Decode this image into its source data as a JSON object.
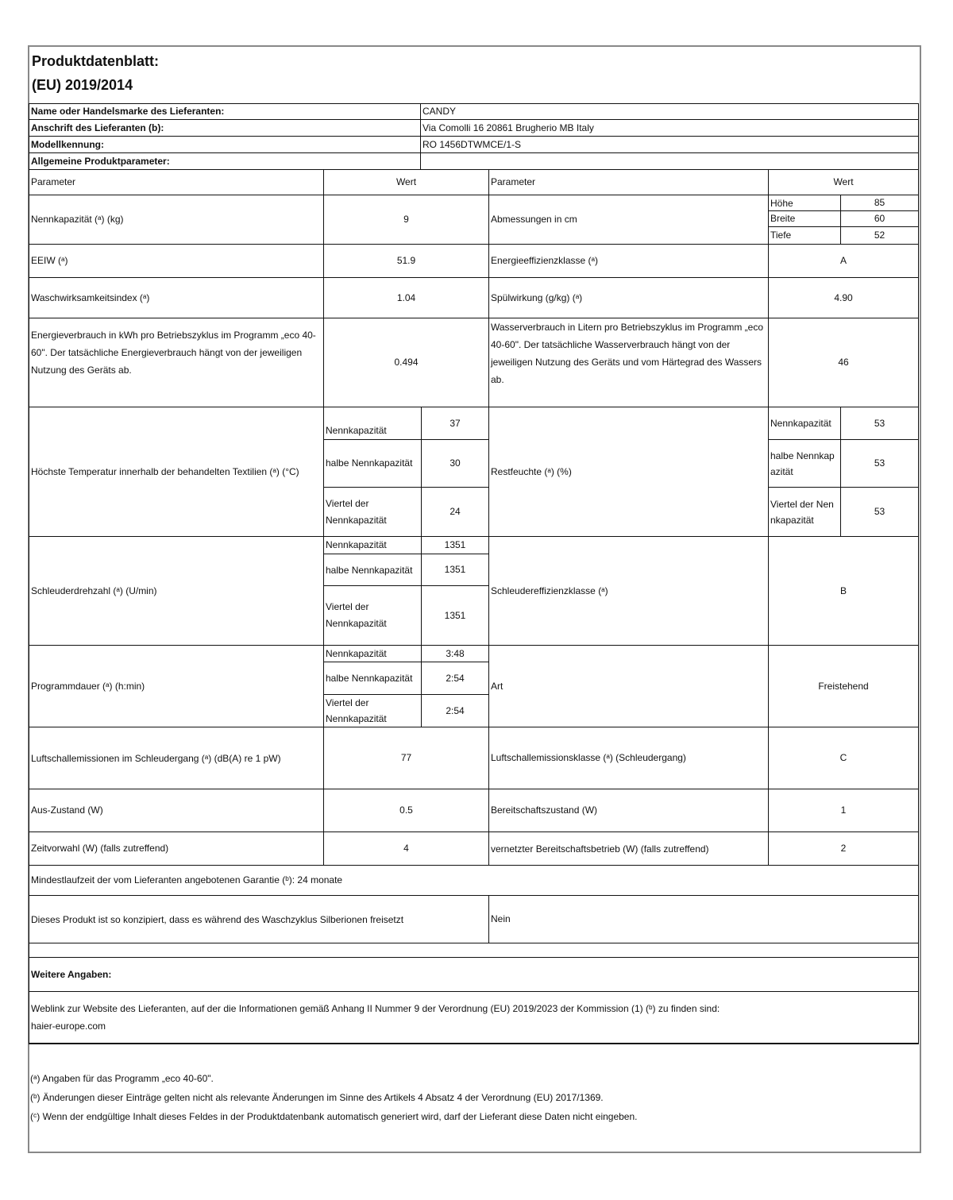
{
  "title": {
    "line1": "Produktdatenblatt:",
    "line2": "(EU) 2019/2014"
  },
  "supplier": {
    "name_label": "Name oder Handelsmarke des Lieferanten:",
    "name_value": "CANDY",
    "address_label": "Anschrift des Lieferanten (b):",
    "address_value": "Via Comolli 16 20861 Brugherio MB Italy",
    "model_label": "Modellkennung:",
    "model_value": "RO 1456DTWMCE/1-S",
    "general_label": "Allgemeine Produktparameter:"
  },
  "headers": {
    "param": "Parameter",
    "value": "Wert"
  },
  "rows": {
    "capacity": {
      "label": "Nennkapazität (ᵃ) (kg)",
      "value": "9"
    },
    "dimensions": {
      "label": "Abmessungen in cm",
      "height_label": "Höhe",
      "height": "85",
      "width_label": "Breite",
      "width": "60",
      "depth_label": "Tiefe",
      "depth": "52"
    },
    "eew": {
      "label": "EEIW (ᵃ)",
      "value": "51.9"
    },
    "energy_class": {
      "label": "Energieeffizienzklasse (ᵃ)",
      "value": "A"
    },
    "wash_index": {
      "label": "Waschwirksamkeitsindex (ᵃ)",
      "value": "1.04"
    },
    "rinse": {
      "label": "Spülwirkung (g/kg) (ᵃ)",
      "value": "4.90"
    },
    "energy": {
      "label": "Energieverbrauch in kWh pro Betriebszyklus im Programm „eco 40-60\". Der tatsächliche Energieverbrauch hängt von der jeweiligen Nutzung des Geräts ab.",
      "value": "0.494"
    },
    "water": {
      "label": "Wasserverbrauch in Litern pro Betriebszyklus im Programm „eco 40-60\". Der tatsächliche Wasserverbrauch hängt von der jeweiligen Nutzung des Geräts und vom Härtegrad des Wassers ab.",
      "value": "46"
    },
    "temp": {
      "label": "Höchste Temperatur innerhalb der behandelten Textilien (ᵃ) (°C)",
      "sub": [
        {
          "l": "Nennkapazität",
          "v": "37"
        },
        {
          "l": "halbe Nennkapazität",
          "v": "30"
        },
        {
          "l": "Viertel der Nennkapazität",
          "v": "24"
        }
      ]
    },
    "moisture": {
      "label": "Restfeuchte (ᵃ) (%)",
      "sub": [
        {
          "l": "Nennkapazität",
          "v": "53"
        },
        {
          "l": "halbe Nennkapazität",
          "v": "53"
        },
        {
          "l": "Viertel der Nennkapazität",
          "v": "53"
        }
      ]
    },
    "spin": {
      "label": "Schleuderdrehzahl (ᵃ) (U/min)",
      "sub": [
        {
          "l": "Nennkapazität",
          "v": "1351"
        },
        {
          "l": "halbe Nennkapazität",
          "v": "1351"
        },
        {
          "l": "Viertel der Nennkapazität",
          "v": "1351"
        }
      ]
    },
    "spin_class": {
      "label": "Schleudereffizienzklasse (ᵃ)",
      "value": "B"
    },
    "duration": {
      "label": "Programmdauer (ᵃ) (h:min)",
      "sub": [
        {
          "l": "Nennkapazität",
          "v": "3:48"
        },
        {
          "l": "halbe Nennkapazität",
          "v": "2:54"
        },
        {
          "l": "Viertel der Nennkapazität",
          "v": "2:54"
        }
      ]
    },
    "type": {
      "label": "Art",
      "value": "Freistehend"
    },
    "noise": {
      "label": "Luftschallemissionen im Schleudergang (ᵃ) (dB(A) re 1 pW)",
      "value": "77"
    },
    "noise_class": {
      "label": "Luftschallemissionsklasse (ᵃ) (Schleudergang)",
      "value": "C"
    },
    "off": {
      "label": "Aus-Zustand (W)",
      "value": "0.5"
    },
    "standby": {
      "label": "Bereitschaftszustand (W)",
      "value": "1"
    },
    "delay": {
      "label": "Zeitvorwahl (W) (falls zutreffend)",
      "value": "4"
    },
    "networked": {
      "label": "vernetzter Bereitschaftsbetrieb (W) (falls zutreffend)",
      "value": "2"
    },
    "warranty": {
      "label": "Mindestlaufzeit der vom Lieferanten angebotenen Garantie (ᵇ): 24 monate"
    },
    "silver": {
      "label": "Dieses Produkt ist so konzipiert, dass es während des Waschzyklus Silberionen freisetzt",
      "value": "Nein"
    }
  },
  "more": {
    "heading": "Weitere Angaben:",
    "weblink": "Weblink zur Website des Lieferanten, auf der die Informationen gemäß Anhang II Nummer 9 der Verordnung (EU) 2019/2023 der Kommission (1) (ᵇ) zu finden sind:",
    "url": "haier-europe.com"
  },
  "footnotes": [
    "(ᵃ) Angaben für das Programm „eco 40-60\".",
    "(ᵇ) Änderungen dieser Einträge gelten nicht als relevante Änderungen im Sinne des Artikels 4 Absatz 4 der Verordnung (EU) 2017/1369.",
    "(ᶜ) Wenn der endgültige Inhalt dieses Feldes in der Produktdatenbank automatisch generiert wird, darf der Lieferant diese Daten nicht eingeben."
  ]
}
